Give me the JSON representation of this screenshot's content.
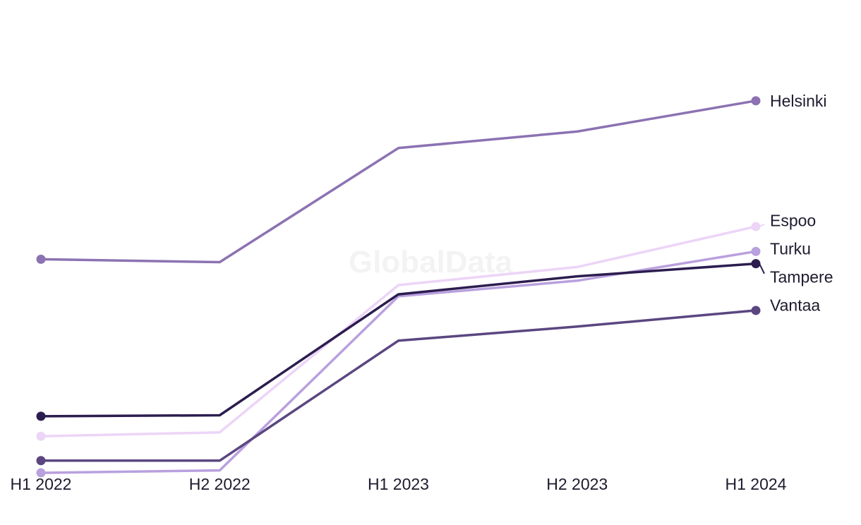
{
  "watermark": "GlobalData",
  "chart_data": {
    "type": "line",
    "x": [
      "H1 2022",
      "H2 2022",
      "H1 2023",
      "H2 2023",
      "H1 2024"
    ],
    "xlabel": "",
    "ylabel": "",
    "ylim": [
      0,
      100
    ],
    "grid": false,
    "legend": "direct labels at line ends",
    "series": [
      {
        "name": "Helsinki",
        "color": "#8c72b2",
        "values": [
          47.7,
          47.1,
          70.5,
          73.9,
          80.2
        ]
      },
      {
        "name": "Espoo",
        "color": "#ecd5f7",
        "values": [
          11.4,
          12.2,
          42.4,
          46.1,
          54.4
        ]
      },
      {
        "name": "Turku",
        "color": "#b9a0de",
        "values": [
          3.9,
          4.4,
          40.1,
          43.3,
          49.3
        ]
      },
      {
        "name": "Tampere",
        "color": "#2c1d4f",
        "values": [
          15.5,
          15.7,
          40.5,
          44.2,
          46.8
        ]
      },
      {
        "name": "Vantaa",
        "color": "#5b4680",
        "values": [
          6.4,
          6.4,
          31.0,
          33.9,
          37.2
        ]
      }
    ]
  }
}
